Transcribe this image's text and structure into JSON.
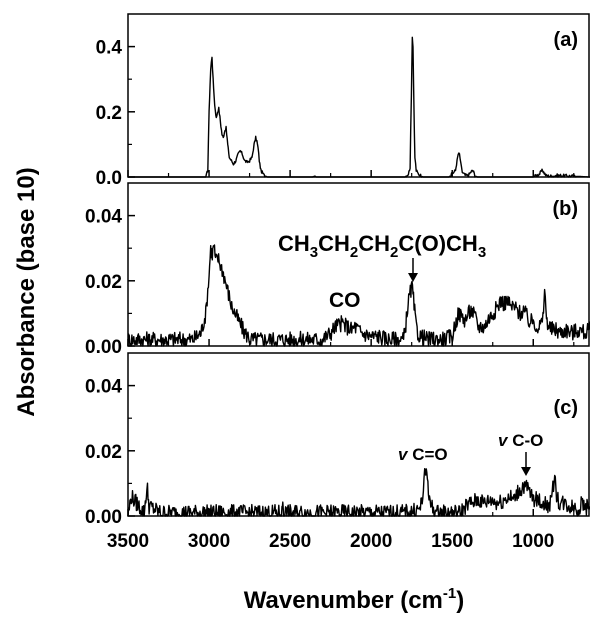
{
  "figure": {
    "ylabel": "Absorbance (base 10)",
    "xlabel_main": "Wavenumber (cm",
    "xlabel_sup": "-1",
    "xlabel_close": ")"
  },
  "chart_data": [
    {
      "type": "line",
      "panel_label": "(a)",
      "xlim": [
        3500,
        650
      ],
      "ylim": [
        0,
        0.5
      ],
      "x_ticks": [
        "3500",
        "3000",
        "2500",
        "2000",
        "1500",
        "1000"
      ],
      "y_ticks": [
        "0.0",
        "0.2",
        "0.4"
      ],
      "series": [
        {
          "x": [
            3500,
            3020,
            3008,
            3000,
            2990,
            2982,
            2975,
            2965,
            2955,
            2948,
            2940,
            2930,
            2920,
            2912,
            2905,
            2895,
            2885,
            2875,
            2862,
            2850,
            2835,
            2820,
            2808,
            2795,
            2780,
            2765,
            2750,
            2735,
            2722,
            2712,
            2705,
            2698,
            2690,
            2680,
            2660,
            2640,
            2500,
            2360,
            2350,
            2340,
            2000,
            1790,
            1770,
            1760,
            1752,
            1746,
            1742,
            1736,
            1730,
            1722,
            1710,
            1680,
            1600,
            1520,
            1480,
            1470,
            1463,
            1455,
            1447,
            1438,
            1420,
            1400,
            1385,
            1375,
            1368,
            1360,
            1345,
            1300,
            1200,
            1100,
            1000,
            960,
            950,
            942,
            932,
            920,
            880,
            860,
            650
          ],
          "y": [
            0,
            0,
            0.02,
            0.2,
            0.33,
            0.37,
            0.3,
            0.22,
            0.18,
            0.2,
            0.21,
            0.17,
            0.13,
            0.12,
            0.14,
            0.15,
            0.1,
            0.06,
            0.05,
            0.04,
            0.05,
            0.07,
            0.08,
            0.07,
            0.05,
            0.045,
            0.05,
            0.06,
            0.1,
            0.12,
            0.11,
            0.09,
            0.05,
            0.02,
            0.005,
            0,
            0,
            0,
            0.005,
            0,
            0,
            0,
            0.01,
            0.03,
            0.25,
            0.43,
            0.4,
            0.2,
            0.06,
            0.02,
            0.01,
            0,
            0,
            0,
            0.02,
            0.05,
            0.07,
            0.07,
            0.04,
            0.015,
            0.005,
            0.005,
            0.015,
            0.02,
            0.015,
            0.005,
            0,
            0,
            0,
            0,
            0,
            0.01,
            0.018,
            0.02,
            0.012,
            0.004,
            0.002,
            0.005,
            0
          ]
        }
      ]
    },
    {
      "type": "line",
      "panel_label": "(b)",
      "xlim": [
        3500,
        650
      ],
      "ylim": [
        0,
        0.05
      ],
      "x_ticks": [
        "3500",
        "3000",
        "2500",
        "2000",
        "1500",
        "1000"
      ],
      "y_ticks": [
        "0.00",
        "0.02",
        "0.04"
      ],
      "annotations": {
        "ketone_main": "CH",
        "ketone_sub1": "3",
        "ketone_mid1": "CH",
        "ketone_sub2": "2",
        "ketone_mid2": "CH",
        "ketone_sub3": "2",
        "ketone_mid3": "C(O)CH",
        "ketone_sub4": "3",
        "co": "CO"
      },
      "series": [
        {
          "x": [
            3500,
            3100,
            3050,
            3020,
            3000,
            2990,
            2980,
            2970,
            2960,
            2945,
            2930,
            2915,
            2900,
            2880,
            2860,
            2840,
            2820,
            2800,
            2780,
            2760,
            2740,
            2700,
            2500,
            2300,
            2250,
            2220,
            2180,
            2150,
            2120,
            2100,
            2060,
            2000,
            1950,
            1900,
            1850,
            1800,
            1790,
            1775,
            1765,
            1755,
            1748,
            1742,
            1735,
            1725,
            1712,
            1700,
            1650,
            1600,
            1550,
            1500,
            1480,
            1460,
            1440,
            1420,
            1400,
            1380,
            1360,
            1340,
            1300,
            1280,
            1250,
            1220,
            1200,
            1180,
            1160,
            1140,
            1120,
            1100,
            1080,
            1060,
            1040,
            1020,
            1000,
            980,
            960,
            940,
            930,
            922,
            915,
            905,
            890,
            860,
            830,
            800,
            760,
            720,
            680,
            650
          ],
          "y": [
            0.002,
            0.002,
            0.004,
            0.01,
            0.022,
            0.03,
            0.028,
            0.031,
            0.026,
            0.027,
            0.025,
            0.023,
            0.02,
            0.016,
            0.012,
            0.01,
            0.008,
            0.006,
            0.004,
            0.003,
            0.002,
            0.002,
            0.002,
            0.002,
            0.004,
            0.006,
            0.007,
            0.006,
            0.005,
            0.006,
            0.004,
            0.003,
            0.003,
            0.002,
            0.002,
            0.002,
            0.005,
            0.012,
            0.015,
            0.017,
            0.018,
            0.016,
            0.012,
            0.007,
            0.004,
            0.003,
            0.002,
            0.002,
            0.002,
            0.003,
            0.007,
            0.01,
            0.009,
            0.008,
            0.01,
            0.011,
            0.009,
            0.006,
            0.006,
            0.008,
            0.01,
            0.012,
            0.014,
            0.013,
            0.014,
            0.012,
            0.012,
            0.011,
            0.01,
            0.011,
            0.009,
            0.007,
            0.008,
            0.006,
            0.006,
            0.008,
            0.018,
            0.01,
            0.008,
            0.006,
            0.005,
            0.005,
            0.004,
            0.005,
            0.004,
            0.005,
            0.004,
            0.005
          ]
        }
      ]
    },
    {
      "type": "line",
      "panel_label": "(c)",
      "xlim": [
        3500,
        650
      ],
      "ylim": [
        0,
        0.05
      ],
      "x_ticks": [
        "3500",
        "3000",
        "2500",
        "2000",
        "1500",
        "1000"
      ],
      "y_ticks": [
        "0.00",
        "0.02",
        "0.04"
      ],
      "annotations": {
        "nu": "v",
        "co_double": " C=O",
        "co_single": " C-O"
      },
      "series": [
        {
          "x": [
            3500,
            3480,
            3400,
            3390,
            3380,
            3370,
            3300,
            3000,
            2700,
            2550,
            2545,
            2540,
            2300,
            2000,
            1800,
            1700,
            1685,
            1670,
            1660,
            1650,
            1640,
            1600,
            1450,
            1420,
            1380,
            1340,
            1300,
            1260,
            1220,
            1180,
            1150,
            1120,
            1100,
            1080,
            1065,
            1050,
            1030,
            1010,
            990,
            970,
            950,
            930,
            910,
            890,
            875,
            868,
            860,
            840,
            810,
            780,
            750,
            720,
            700,
            680,
            650
          ],
          "y": [
            0.0,
            0.006,
            0.001,
            0.006,
            0.008,
            0.003,
            0.001,
            0.001,
            0.001,
            0.001,
            0.005,
            0.001,
            0.001,
            0.001,
            0.001,
            0.002,
            0.005,
            0.012,
            0.014,
            0.011,
            0.004,
            0.001,
            0.001,
            0.003,
            0.004,
            0.005,
            0.004,
            0.005,
            0.004,
            0.005,
            0.006,
            0.005,
            0.007,
            0.008,
            0.009,
            0.009,
            0.008,
            0.006,
            0.005,
            0.005,
            0.004,
            0.004,
            0.003,
            0.004,
            0.01,
            0.014,
            0.007,
            0.004,
            0.004,
            0.003,
            0.003,
            0.002,
            0.004,
            0.003,
            0.002
          ]
        }
      ]
    }
  ]
}
